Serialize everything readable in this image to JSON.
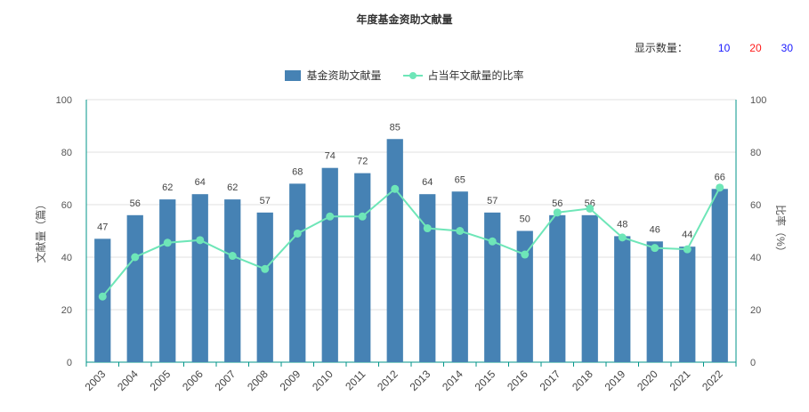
{
  "title": "年度基金资助文献量",
  "display_count": {
    "label": "显示数量：",
    "options": [
      "10",
      "20",
      "30"
    ]
  },
  "legend": {
    "bar": "基金资助文献量",
    "line": "占当年文献量的比率"
  },
  "colors": {
    "bar": "#4682b4",
    "line": "#6ee6b8",
    "axis": "#009688",
    "grid": "#e0e0e0"
  },
  "chart_data": {
    "type": "bar",
    "title": "年度基金资助文献量",
    "categories": [
      "2003",
      "2004",
      "2005",
      "2006",
      "2007",
      "2008",
      "2009",
      "2010",
      "2011",
      "2012",
      "2013",
      "2014",
      "2015",
      "2016",
      "2017",
      "2018",
      "2019",
      "2020",
      "2021",
      "2022"
    ],
    "series": [
      {
        "name": "基金资助文献量",
        "type": "bar",
        "axis": "left",
        "values": [
          47,
          56,
          62,
          64,
          62,
          57,
          68,
          74,
          72,
          85,
          64,
          65,
          57,
          50,
          56,
          56,
          48,
          46,
          44,
          66
        ]
      },
      {
        "name": "占当年文献量的比率",
        "type": "line",
        "axis": "right",
        "values": [
          25,
          40,
          45.5,
          46.5,
          40.5,
          35.5,
          49,
          55.5,
          55.5,
          66,
          51,
          50,
          46,
          41,
          57,
          58.5,
          47.5,
          43.5,
          43,
          66.5
        ]
      }
    ],
    "ylabel_left": "文献量（篇）",
    "ylabel_right": "比率（%）",
    "ylim_left": [
      0,
      100
    ],
    "ylim_right": [
      0,
      100
    ],
    "yticks": [
      0,
      20,
      40,
      60,
      80,
      100
    ],
    "grid": true,
    "legend_position": "top-center"
  }
}
